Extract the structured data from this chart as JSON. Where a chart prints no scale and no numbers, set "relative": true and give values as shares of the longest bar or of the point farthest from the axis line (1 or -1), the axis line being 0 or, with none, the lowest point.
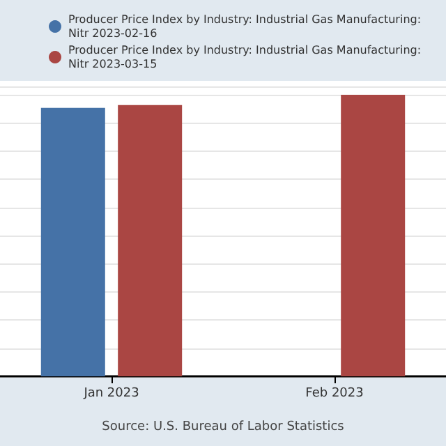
{
  "chart_data": {
    "type": "bar",
    "relative": true,
    "categories": [
      "Jan 2023",
      "Feb 2023"
    ],
    "series": [
      {
        "name": "Producer Price Index by Industry: Industrial Gas Manufacturing: Nitr 2023-02-16",
        "color": "#4572a7",
        "values": [
          0.954,
          null
        ]
      },
      {
        "name": "Producer Price Index by Industry: Industrial Gas Manufacturing: Nitr 2023-03-15",
        "color": "#aa4643",
        "values": [
          0.964,
          1
        ]
      }
    ],
    "grid": "y",
    "legend": "top",
    "annotations": [
      "Source: U.S. Bureau of Labor Statistics"
    ]
  }
}
